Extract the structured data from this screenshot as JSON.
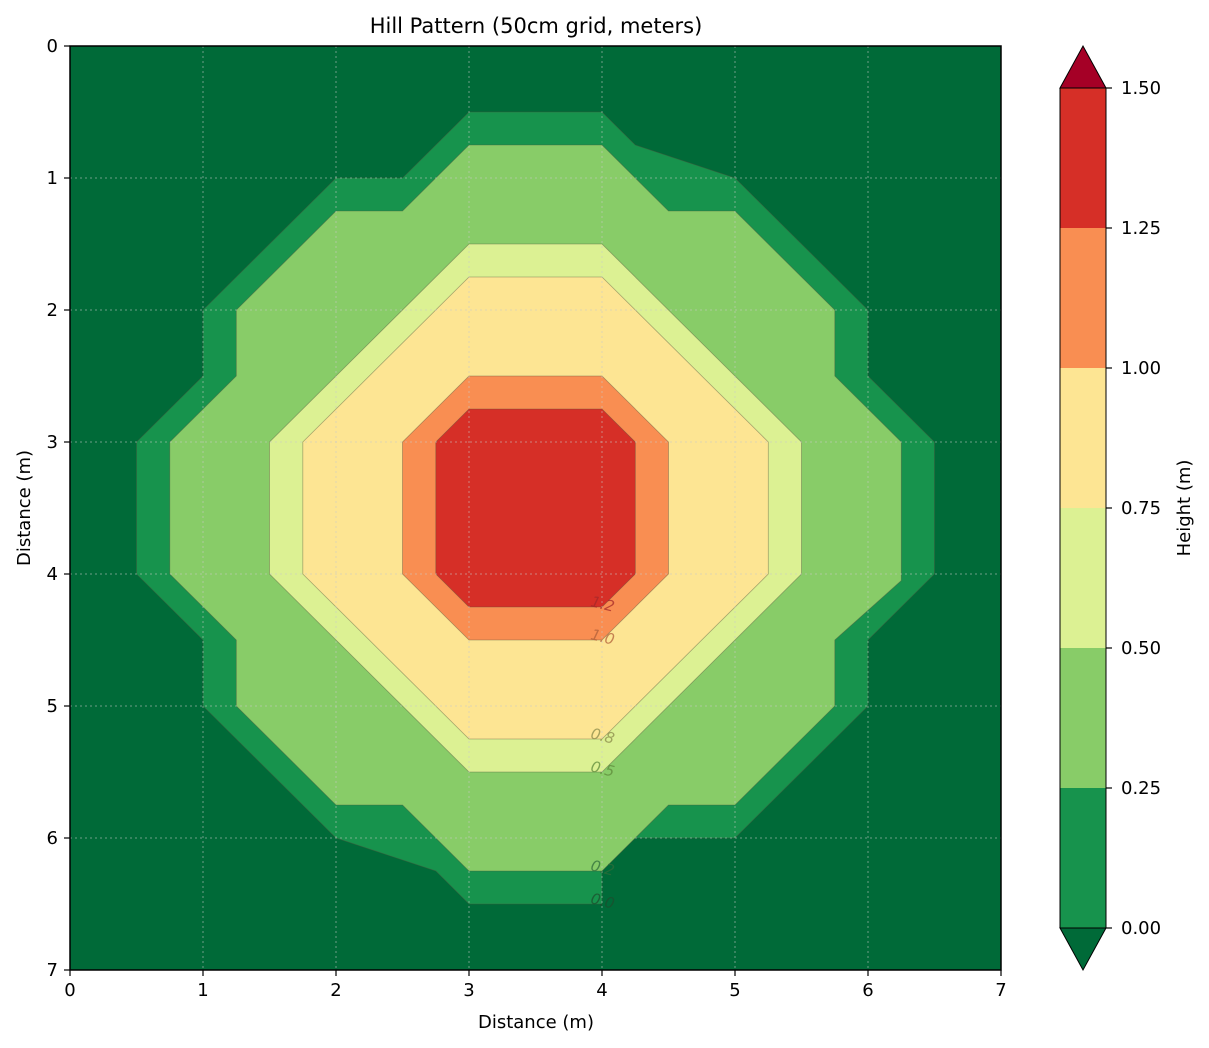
{
  "chart_data": {
    "type": "contour",
    "title": "Hill Pattern (50cm grid, meters)",
    "xlabel": "Distance (m)",
    "ylabel": "Distance (m)",
    "xlim": [
      0,
      7
    ],
    "ylim": [
      7,
      0
    ],
    "y_inverted": true,
    "xticks": [
      "0",
      "1",
      "2",
      "3",
      "4",
      "5",
      "6",
      "7"
    ],
    "yticks": [
      "0",
      "1",
      "2",
      "3",
      "4",
      "5",
      "6",
      "7"
    ],
    "grid": true,
    "grid_style": "dotted",
    "colormap": "RdYlGn_r",
    "levels": [
      0.0,
      0.25,
      0.5,
      0.75,
      1.0,
      1.25,
      1.5
    ],
    "level_colors": [
      "#17934d",
      "#88cc68",
      "#dcf193",
      "#fde593",
      "#f98e52",
      "#d62f27"
    ],
    "under_color": "#006a38",
    "over_color": "#a50026",
    "colorbar": {
      "label": "Height (m)",
      "ticks": [
        "0.00",
        "0.25",
        "0.50",
        "0.75",
        "1.00",
        "1.25",
        "1.50"
      ],
      "extend": "both"
    },
    "regions": [
      {
        "level_min": 0.0,
        "polygon": [
          [
            3,
            0.5
          ],
          [
            4,
            0.5
          ],
          [
            4.25,
            0.75
          ],
          [
            5,
            1
          ],
          [
            6,
            2
          ],
          [
            6,
            2.5
          ],
          [
            6.5,
            3
          ],
          [
            6.5,
            4
          ],
          [
            6,
            4.5
          ],
          [
            6,
            5
          ],
          [
            5,
            6
          ],
          [
            4,
            6
          ],
          [
            4,
            6.5
          ],
          [
            3,
            6.5
          ],
          [
            2.75,
            6.25
          ],
          [
            2,
            6
          ],
          [
            1,
            5
          ],
          [
            1,
            4.5
          ],
          [
            0.5,
            4
          ],
          [
            0.5,
            3
          ],
          [
            1,
            2.5
          ],
          [
            1,
            2
          ],
          [
            2,
            1
          ],
          [
            2.5,
            1
          ],
          [
            3,
            0.5
          ]
        ]
      },
      {
        "level_min": 0.25,
        "polygon": [
          [
            3,
            0.75
          ],
          [
            4,
            0.75
          ],
          [
            4.5,
            1.25
          ],
          [
            5,
            1.25
          ],
          [
            5.75,
            2
          ],
          [
            5.75,
            2.5
          ],
          [
            6.25,
            3
          ],
          [
            6.25,
            4.05
          ],
          [
            5.75,
            4.5
          ],
          [
            5.75,
            5
          ],
          [
            5,
            5.75
          ],
          [
            4.5,
            5.75
          ],
          [
            4,
            6.25
          ],
          [
            3,
            6.25
          ],
          [
            2.5,
            5.75
          ],
          [
            2,
            5.75
          ],
          [
            1.25,
            5
          ],
          [
            1.25,
            4.5
          ],
          [
            0.75,
            4
          ],
          [
            0.75,
            3
          ],
          [
            1.25,
            2.5
          ],
          [
            1.25,
            2
          ],
          [
            2,
            1.25
          ],
          [
            2.5,
            1.25
          ],
          [
            3,
            0.75
          ]
        ]
      },
      {
        "level_min": 0.5,
        "polygon": [
          [
            3,
            1.5
          ],
          [
            4,
            1.5
          ],
          [
            5.5,
            3
          ],
          [
            5.5,
            4
          ],
          [
            4,
            5.5
          ],
          [
            3,
            5.5
          ],
          [
            1.5,
            4
          ],
          [
            1.5,
            3
          ],
          [
            3,
            1.5
          ]
        ]
      },
      {
        "level_min": 0.75,
        "polygon": [
          [
            3,
            1.75
          ],
          [
            4,
            1.75
          ],
          [
            5.25,
            3
          ],
          [
            5.25,
            4
          ],
          [
            4,
            5.25
          ],
          [
            3,
            5.25
          ],
          [
            1.75,
            4
          ],
          [
            1.75,
            3
          ],
          [
            3,
            1.75
          ]
        ]
      },
      {
        "level_min": 1.0,
        "polygon": [
          [
            3,
            2.5
          ],
          [
            4,
            2.5
          ],
          [
            4.5,
            3
          ],
          [
            4.5,
            4
          ],
          [
            4,
            4.5
          ],
          [
            3,
            4.5
          ],
          [
            2.5,
            4
          ],
          [
            2.5,
            3
          ],
          [
            3,
            2.5
          ]
        ]
      },
      {
        "level_min": 1.25,
        "polygon": [
          [
            3,
            2.75
          ],
          [
            4,
            2.75
          ],
          [
            4.25,
            3
          ],
          [
            4.25,
            4
          ],
          [
            4,
            4.25
          ],
          [
            3,
            4.25
          ],
          [
            2.75,
            4
          ],
          [
            2.75,
            3
          ],
          [
            3,
            2.75
          ]
        ]
      }
    ],
    "contour_labels": [
      {
        "text": "1.2",
        "x": 4.0,
        "y": 4.25,
        "color": "#a52a2a"
      },
      {
        "text": "1.0",
        "x": 4.0,
        "y": 4.5,
        "color": "#b05f3a"
      },
      {
        "text": "0.8",
        "x": 4.0,
        "y": 5.25,
        "color": "#8a8a4a"
      },
      {
        "text": "0.5",
        "x": 4.0,
        "y": 5.5,
        "color": "#5e8a3a"
      },
      {
        "text": "0.2",
        "x": 4.0,
        "y": 6.25,
        "color": "#2f6e3a"
      },
      {
        "text": "0.0",
        "x": 4.0,
        "y": 6.5,
        "color": "#1e4e2e"
      }
    ]
  }
}
